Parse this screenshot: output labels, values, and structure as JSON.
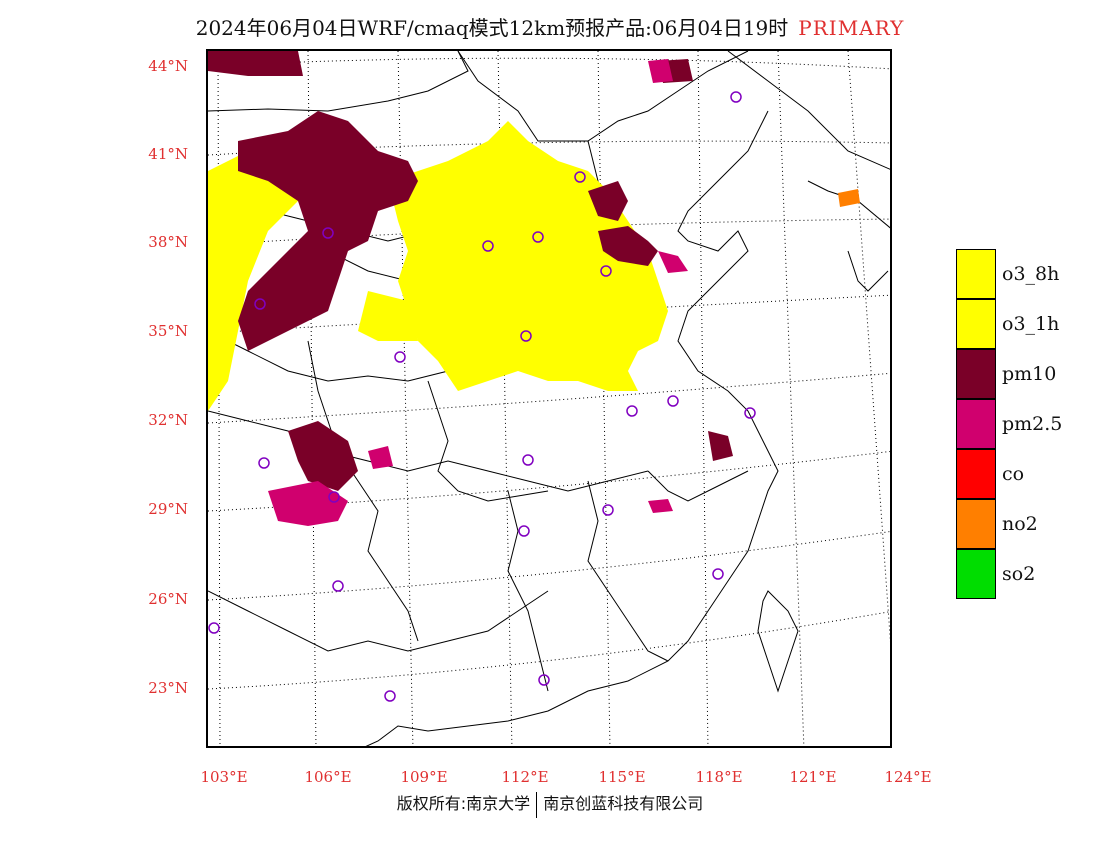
{
  "title": {
    "main": "2024年06月04日WRF/cmaq模式12km预报产品:06月04日19时",
    "tag": "PRIMARY"
  },
  "axes": {
    "latitudes": [
      "44°N",
      "41°N",
      "38°N",
      "35°N",
      "32°N",
      "29°N",
      "26°N",
      "23°N"
    ],
    "longitudes": [
      "103°E",
      "106°E",
      "109°E",
      "112°E",
      "115°E",
      "118°E",
      "121°E",
      "124°E"
    ]
  },
  "legend": [
    {
      "label": "o3_8h",
      "color": "#ffff00"
    },
    {
      "label": "o3_1h",
      "color": "#ffff00"
    },
    {
      "label": "pm10",
      "color": "#7a0028"
    },
    {
      "label": "pm2.5",
      "color": "#d0006e"
    },
    {
      "label": "co",
      "color": "#ff0000"
    },
    {
      "label": "no2",
      "color": "#ff7f00"
    },
    {
      "label": "so2",
      "color": "#00dd00"
    }
  ],
  "copyright": {
    "left": "版权所有:南京大学",
    "right": "南京创蓝科技有限公司"
  },
  "colors": {
    "o3": "#ffff00",
    "pm10": "#7a0028",
    "pm25": "#d0006e",
    "no2": "#ff7f00",
    "station": "#8000c0",
    "label": "#e03030"
  }
}
